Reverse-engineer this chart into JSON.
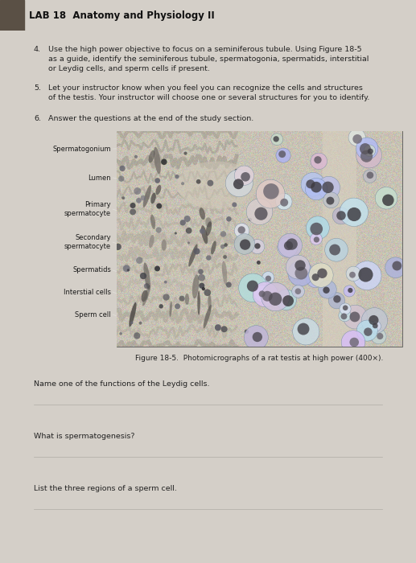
{
  "bg_color": "#d4cfc8",
  "header_bg": "#c8c3bb",
  "header_sep_color": "#a09890",
  "title_text": "LAB 18  Anatomy and Physiology II",
  "title_fontsize": 8.5,
  "body_fontsize": 6.8,
  "label_fontsize": 6.0,
  "caption_fontsize": 6.5,
  "question_fontsize": 6.8,
  "items": [
    {
      "num": "4.",
      "text": "Use the high power objective to focus on a seminiferous tubule. Using Figure 18-5\nas a guide, identify the seminiferous tubule, spermatogonia, spermatids, interstitial\nor Leydig cells, and sperm cells if present."
    },
    {
      "num": "5.",
      "text": "Let your instructor know when you feel you can recognize the cells and structures\nof the testis. Your instructor will choose one or several structures for you to identify."
    },
    {
      "num": "6.",
      "text": "Answer the questions at the end of the study section."
    }
  ],
  "labels": [
    "Spermatogonium",
    "Lumen",
    "Primary\nspermatocyte",
    "Secondary\nspermatocyte",
    "Spermatids",
    "Interstial cells",
    "Sperm cell"
  ],
  "fig_caption": "Figure 18-5.  Photomicrographs of a rat testis at high power (400×).",
  "question1": "Name one of the functions of the Leydig cells.",
  "question2": "What is spermatogenesis?",
  "question3": "List the three regions of a sperm cell.",
  "img_bg": "#c8c0b4",
  "tubule_color": "#8a8070",
  "lumen_color": "#b8b0a0",
  "cell_colors": [
    "#7b8faa",
    "#8899b0",
    "#6a7d99",
    "#9aaabb",
    "#7788a4"
  ],
  "nucleus_color": "#2a3850"
}
